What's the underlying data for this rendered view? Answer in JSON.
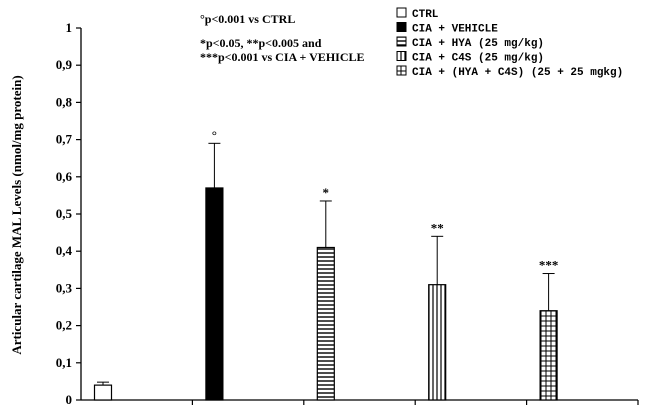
{
  "chart_data": {
    "type": "bar",
    "ylabel": "Articular cartilage MAL Levels (nmol/mg protein)",
    "ylim": [
      0,
      1
    ],
    "yticks": [
      "0",
      "0,1",
      "0,2",
      "0,3",
      "0,4",
      "0,5",
      "0,6",
      "0,7",
      "0,8",
      "0,9",
      "1"
    ],
    "categories": [
      "CTRL",
      "CIA + VEHICLE",
      "CIA + HYA (25 mg/kg)",
      "CIA + C4S (25 mg/kg)",
      "CIA + (HYA + C4S) (25 + 25 mgkg)"
    ],
    "values": [
      0.04,
      0.57,
      0.41,
      0.31,
      0.24
    ],
    "errors": [
      0.008,
      0.12,
      0.125,
      0.13,
      0.1
    ],
    "significance": [
      "",
      "°",
      "*",
      "**",
      "***"
    ],
    "patterns": [
      "white",
      "black",
      "horizontal",
      "vertical",
      "grid"
    ],
    "legend_position": "top-right",
    "annotations": [
      "°p<0.001 vs CTRL",
      "*p<0.05, **p<0.005 and",
      "***p<0.001 vs CIA + VEHICLE"
    ]
  }
}
